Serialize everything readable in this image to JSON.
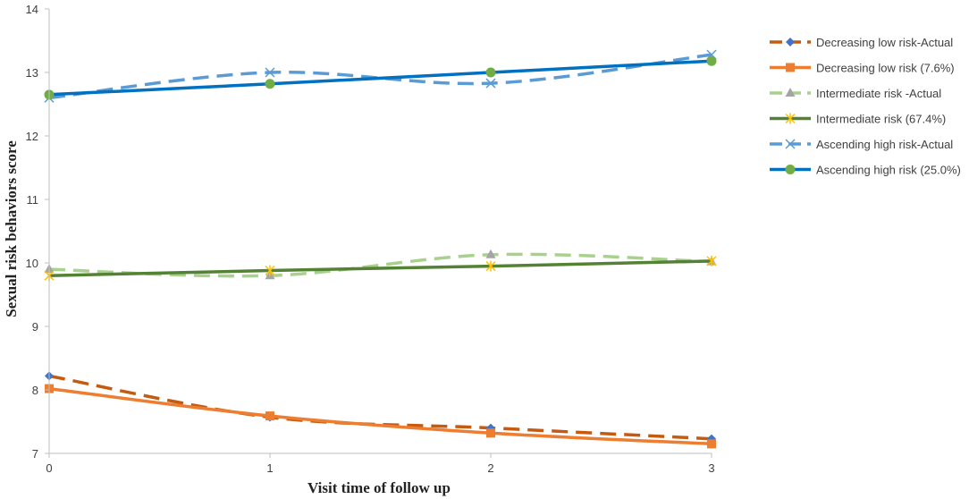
{
  "chart_data": {
    "type": "line",
    "title": "",
    "xlabel": "Visit time of follow up",
    "ylabel": "Sexual risk behaviors score",
    "x": [
      0,
      1,
      2,
      3
    ],
    "x_ticks": [
      "0",
      "1",
      "2",
      "3"
    ],
    "xlim": [
      0,
      3
    ],
    "ylim": [
      7,
      14
    ],
    "y_ticks": [
      "7",
      "8",
      "9",
      "10",
      "11",
      "12",
      "13",
      "14"
    ],
    "grid": false,
    "legend_position": "right",
    "series": [
      {
        "name": "Decreasing low risk-Actual",
        "values": [
          8.22,
          7.57,
          7.4,
          7.23
        ],
        "color": "#C55A11",
        "dash": true,
        "marker": "diamond",
        "marker_color": "#4472C4"
      },
      {
        "name": "Decreasing low risk (7.6%)",
        "values": [
          8.02,
          7.59,
          7.32,
          7.15
        ],
        "color": "#ED7D31",
        "dash": false,
        "marker": "square",
        "marker_color": "#ED7D31"
      },
      {
        "name": "Intermediate risk -Actual",
        "values": [
          9.9,
          9.8,
          10.13,
          10.02
        ],
        "color": "#A9D18E",
        "dash": true,
        "marker": "triangle",
        "marker_color": "#A5A5A5"
      },
      {
        "name": "Intermediate risk (67.4%)",
        "values": [
          9.8,
          9.88,
          9.95,
          10.03
        ],
        "color": "#548235",
        "dash": false,
        "marker": "star",
        "marker_color": "#FFC000"
      },
      {
        "name": "Ascending high risk-Actual",
        "values": [
          12.6,
          13.0,
          12.83,
          13.28
        ],
        "color": "#5B9BD5",
        "dash": true,
        "marker": "x",
        "marker_color": "#5B9BD5"
      },
      {
        "name": "Ascending high risk (25.0%)",
        "values": [
          12.65,
          12.82,
          13.0,
          13.18
        ],
        "color": "#0070C0",
        "dash": false,
        "marker": "circle",
        "marker_color": "#70AD47"
      }
    ]
  }
}
